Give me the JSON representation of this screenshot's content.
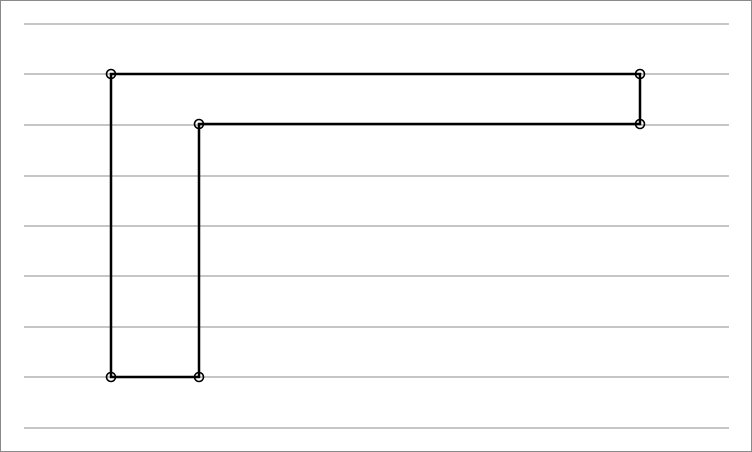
{
  "diagram": {
    "colors": {
      "background": "#ffffff",
      "frame_border": "#8a8a8a",
      "ruled_line": "#8c8c8c",
      "shape_stroke": "#000000"
    },
    "ruled_line_count": 9,
    "shape": {
      "kind": "L-shaped polygon",
      "vertex_marker": "open-circle",
      "vertex_count": 6
    }
  }
}
